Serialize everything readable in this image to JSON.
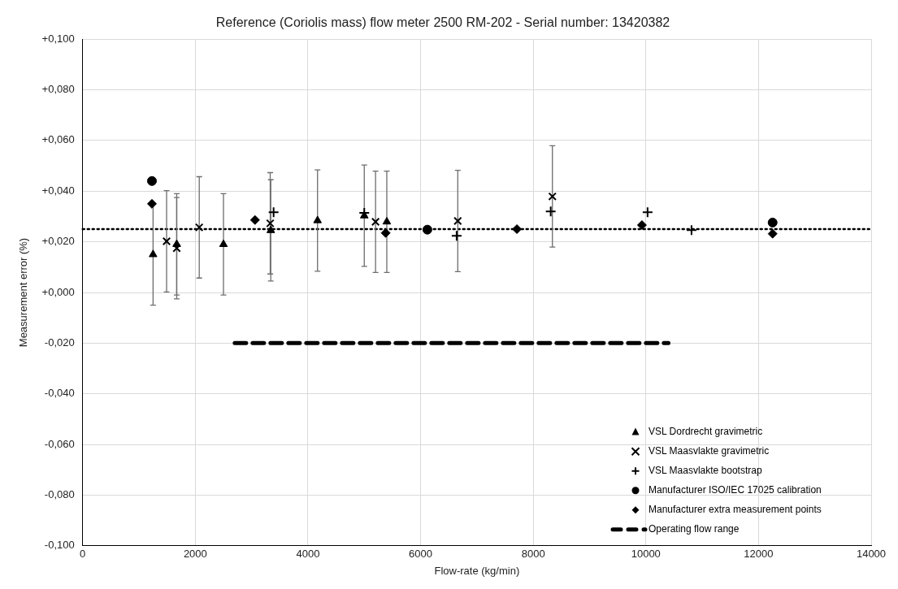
{
  "chart_data": {
    "type": "scatter",
    "title": "Reference (Coriolis mass) flow meter 2500 RM-202 - Serial number: 13420382",
    "xlabel": "Flow-rate (kg/min)",
    "ylabel": "Measurement error (%)",
    "xlim": [
      0,
      14000
    ],
    "xticks": [
      0,
      2000,
      4000,
      6000,
      8000,
      10000,
      12000,
      14000
    ],
    "ylim": [
      -0.1,
      0.1
    ],
    "yticks": [
      {
        "value": -0.1,
        "label": "-0,100"
      },
      {
        "value": -0.08,
        "label": "-0,080"
      },
      {
        "value": -0.06,
        "label": "-0,060"
      },
      {
        "value": -0.04,
        "label": "-0,040"
      },
      {
        "value": -0.02,
        "label": "-0,020"
      },
      {
        "value": 0,
        "label": "+0,000"
      },
      {
        "value": 0.02,
        "label": "+0,020"
      },
      {
        "value": 0.04,
        "label": "+0,040"
      },
      {
        "value": 0.06,
        "label": "+0,060"
      },
      {
        "value": 0.08,
        "label": "+0,080"
      },
      {
        "value": 0.1,
        "label": "+0,100"
      }
    ],
    "grid": true,
    "legend": "bottom right",
    "series": [
      {
        "name": "VSL Dordrecht gravimetric",
        "color": "#000000",
        "marker": "triangle",
        "x": [
          1250,
          1670,
          2500,
          3340,
          4170,
          5000,
          5400
        ],
        "values": [
          0.015,
          0.019,
          0.019,
          0.0245,
          0.0284,
          0.0303,
          0.0279
        ],
        "errors": [
          0.02,
          0.02,
          0.02,
          0.02,
          0.02,
          0.02,
          0.02
        ]
      },
      {
        "name": "VSL Maasvlakte gravimetric",
        "color": "#000000",
        "marker": "x",
        "x": [
          1490,
          1670,
          2070,
          3330,
          5200,
          6660,
          8340
        ],
        "values": [
          0.0202,
          0.0175,
          0.0257,
          0.0273,
          0.0279,
          0.0282,
          0.0379
        ],
        "errors": [
          0.02,
          0.02,
          0.02,
          0.02,
          0.02,
          0.02,
          0.02
        ]
      },
      {
        "name": "VSL Maasvlakte bootstrap",
        "color": "#000000",
        "marker": "cross",
        "x": [
          3390,
          5000,
          6640,
          8310,
          10030,
          10810
        ],
        "values": [
          0.0317,
          0.0314,
          0.0224,
          0.032,
          0.0317,
          0.0246
        ]
      },
      {
        "name": "Manufacturer ISO/IEC 17025 calibration",
        "color": "#000000",
        "marker": "circle",
        "x": [
          1230,
          6120,
          12250
        ],
        "values": [
          0.044,
          0.0248,
          0.0276
        ]
      },
      {
        "name": "Manufacturer extra measurement points",
        "color": "#000000",
        "marker": "diamond",
        "x": [
          1230,
          3060,
          5380,
          7710,
          9930,
          12250
        ],
        "values": [
          0.035,
          0.0286,
          0.0235,
          0.025,
          0.0266,
          0.0232
        ]
      },
      {
        "name": "Operating flow range",
        "type": "line",
        "color": "#000000",
        "marker": "none",
        "line_style": "dashed",
        "x": [
          2700,
          10400
        ],
        "values": [
          -0.02,
          -0.02
        ]
      }
    ],
    "ref_lines": [
      {
        "axis": "y",
        "value": 0.025,
        "color": "#000000",
        "line_style": "dotted"
      }
    ]
  }
}
